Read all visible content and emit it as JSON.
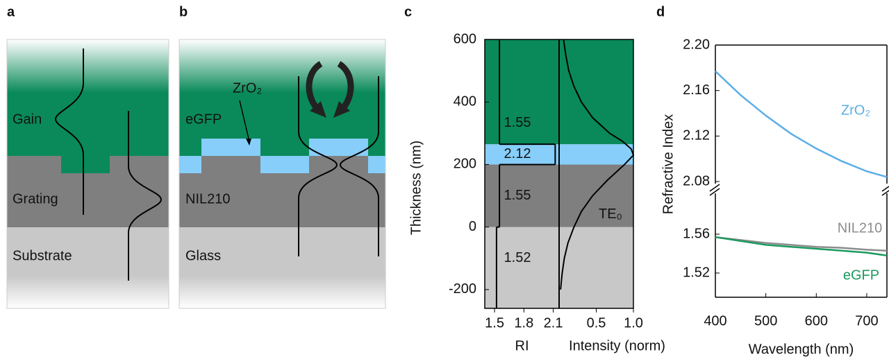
{
  "panel_labels": [
    "a",
    "b",
    "c",
    "d"
  ],
  "panel_a": {
    "layers": [
      "Gain",
      "Grating",
      "Substrate"
    ]
  },
  "panel_b": {
    "layers": [
      "eGFP",
      "NIL210",
      "Glass"
    ],
    "coating_label": "ZrO₂"
  },
  "chart_data": [
    {
      "type": "layer-profile",
      "y_label": "Thickness (nm)",
      "ylim": [
        -260,
        600
      ],
      "yticks": [
        -200,
        0,
        200,
        400,
        600
      ],
      "x_label": "RI",
      "xlim": [
        1.4,
        2.16
      ],
      "xticks": [
        1.5,
        1.8,
        2.1
      ],
      "x2_label": "Intensity (norm)",
      "x2lim": [
        0,
        1
      ],
      "x2ticks": [
        0.5,
        {
          "value": 1,
          "label": "1.0"
        }
      ],
      "layer_boundaries": [
        0,
        200,
        265
      ],
      "layer_ri": [
        1.52,
        1.55,
        2.12,
        1.55
      ],
      "layer_colors": [
        "#c8c8c8",
        "#7f7f7f",
        "#87cefa",
        "#0a8a5a"
      ],
      "mode": {
        "name": "TE₀",
        "color": "#000000",
        "y": [
          -200,
          -150,
          -100,
          -50,
          0,
          50,
          100,
          150,
          200,
          230,
          250,
          275,
          300,
          350,
          400,
          450,
          500,
          550,
          600
        ],
        "values": [
          0.02,
          0.04,
          0.07,
          0.12,
          0.2,
          0.3,
          0.45,
          0.65,
          0.88,
          1.0,
          0.97,
          0.85,
          0.68,
          0.45,
          0.3,
          0.2,
          0.13,
          0.09,
          0.06
        ]
      }
    },
    {
      "type": "line",
      "x_label": "Wavelength (nm)",
      "y_label": "Refractive Index",
      "xlim": [
        400,
        740
      ],
      "xticks": [
        400,
        500,
        600,
        700
      ],
      "y_segments": [
        {
          "ylim": [
            2.08,
            2.2
          ],
          "yticks": [
            2.08,
            2.12,
            2.16,
            {
              "value": 2.2,
              "label": "2.20"
            }
          ]
        },
        {
          "ylim": [
            1.495,
            1.6
          ],
          "yticks": [
            1.52,
            1.56
          ]
        }
      ],
      "x": [
        400,
        450,
        500,
        550,
        600,
        650,
        700,
        740
      ],
      "series": [
        {
          "name": "ZrO₂",
          "color": "#5aaee6",
          "segment": 0,
          "values": [
            2.177,
            2.156,
            2.138,
            2.122,
            2.109,
            2.098,
            2.089,
            2.084
          ]
        },
        {
          "name": "NIL210",
          "color": "#8c8c8c",
          "segment": 1,
          "values": [
            1.557,
            1.554,
            1.551,
            1.549,
            1.547,
            1.546,
            1.544,
            1.543
          ]
        },
        {
          "name": "eGFP",
          "color": "#1a9a5e",
          "segment": 1,
          "values": [
            1.557,
            1.553,
            1.549,
            1.547,
            1.545,
            1.543,
            1.541,
            1.538
          ]
        }
      ]
    }
  ]
}
